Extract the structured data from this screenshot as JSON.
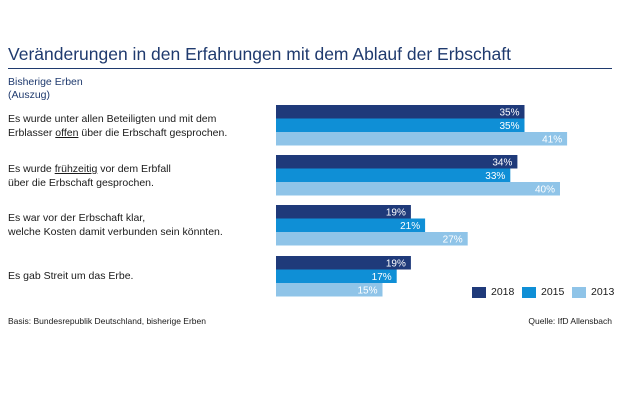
{
  "title": "Veränderungen in den Erfahrungen mit dem Ablauf der Erbschaft",
  "subtitle_line1": "Bisherige Erben",
  "subtitle_line2": "(Auszug)",
  "questions": [
    {
      "line1_pre": "Es wurde unter allen Beteiligten und mit dem",
      "line2_pre": "Erblasser ",
      "line2_u": "offen",
      "line2_post": " über die Erbschaft gesprochen."
    },
    {
      "line1_pre": "Es wurde ",
      "line1_u": "frühzeitig",
      "line1_post": " vor dem Erbfall",
      "line2_pre": "über die Erbschaft gesprochen."
    },
    {
      "line1_pre": "Es war vor der Erbschaft klar,",
      "line2_pre": "welche Kosten damit verbunden sein könnten."
    },
    {
      "line1_pre": "Es gab Streit um das Erbe."
    }
  ],
  "footer_left": "Basis: Bundesrepublik Deutschland, bisherige Erben",
  "footer_right": "Quelle: IfD Allensbach",
  "colors": {
    "2018": "#1f3a7a",
    "2015": "#0f8fd6",
    "2013": "#8fc4e8",
    "title": "#1f3a6e"
  },
  "chart_data": {
    "type": "bar",
    "orientation": "horizontal",
    "categories": [
      "Es wurde unter allen Beteiligten und mit dem Erblasser offen über die Erbschaft gesprochen.",
      "Es wurde frühzeitig vor dem Erbfall über die Erbschaft gesprochen.",
      "Es war vor der Erbschaft klar, welche Kosten damit verbunden sein könnten.",
      "Es gab Streit um das Erbe."
    ],
    "series": [
      {
        "name": "2018",
        "values": [
          35,
          34,
          19,
          19
        ]
      },
      {
        "name": "2015",
        "values": [
          35,
          33,
          21,
          17
        ]
      },
      {
        "name": "2013",
        "values": [
          41,
          40,
          27,
          15
        ]
      }
    ],
    "unit": "%",
    "legend": "bottom-right"
  }
}
